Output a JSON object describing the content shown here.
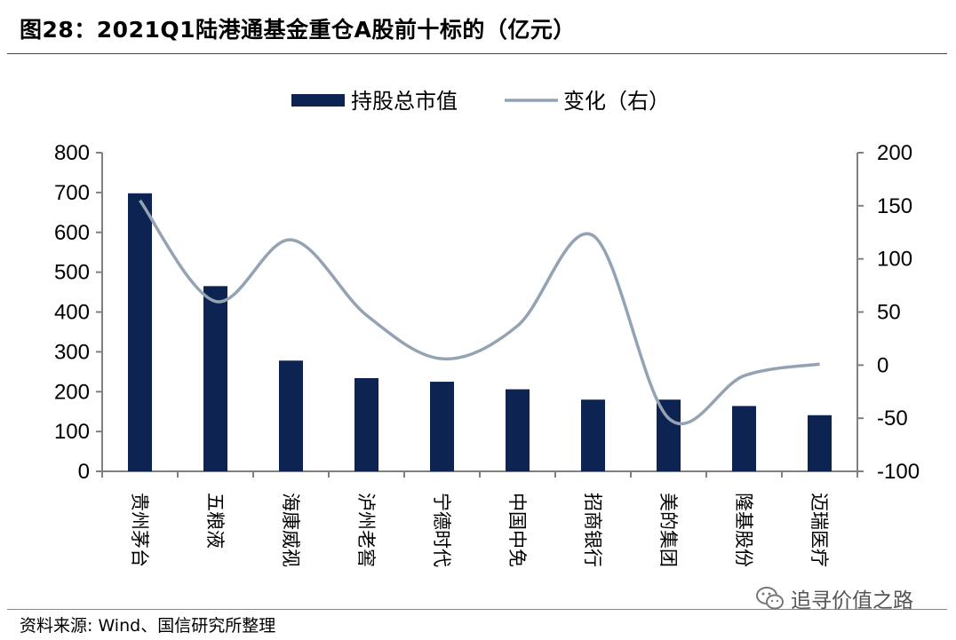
{
  "title": "图28：2021Q1陆港通基金重仓A股前十标的（亿元）",
  "source": "资料来源: Wind、国信研究所整理",
  "watermark": "追寻价值之路",
  "chart_data": {
    "type": "bar",
    "categories": [
      "贵州茅台",
      "五粮液",
      "海康威视",
      "泸州老窖",
      "宁德时代",
      "中国中免",
      "招商银行",
      "美的集团",
      "隆基股份",
      "迈瑞医疗"
    ],
    "series": [
      {
        "name": "持股总市值",
        "type": "bar",
        "axis": "left",
        "color": "#0d2452",
        "values": [
          698,
          465,
          278,
          234,
          225,
          206,
          180,
          180,
          164,
          141
        ]
      },
      {
        "name": "变化（右）",
        "type": "line",
        "axis": "right",
        "color": "#94a3b3",
        "values": [
          155,
          60,
          118,
          47,
          6,
          37,
          122,
          -50,
          -10,
          1
        ]
      }
    ],
    "ylim_left": [
      0,
      800
    ],
    "yticks_left": [
      0,
      100,
      200,
      300,
      400,
      500,
      600,
      700,
      800
    ],
    "ylim_right": [
      -100,
      200
    ],
    "yticks_right": [
      -100,
      -50,
      0,
      50,
      100,
      150,
      200
    ],
    "legend_position": "top-center",
    "grid": false
  }
}
